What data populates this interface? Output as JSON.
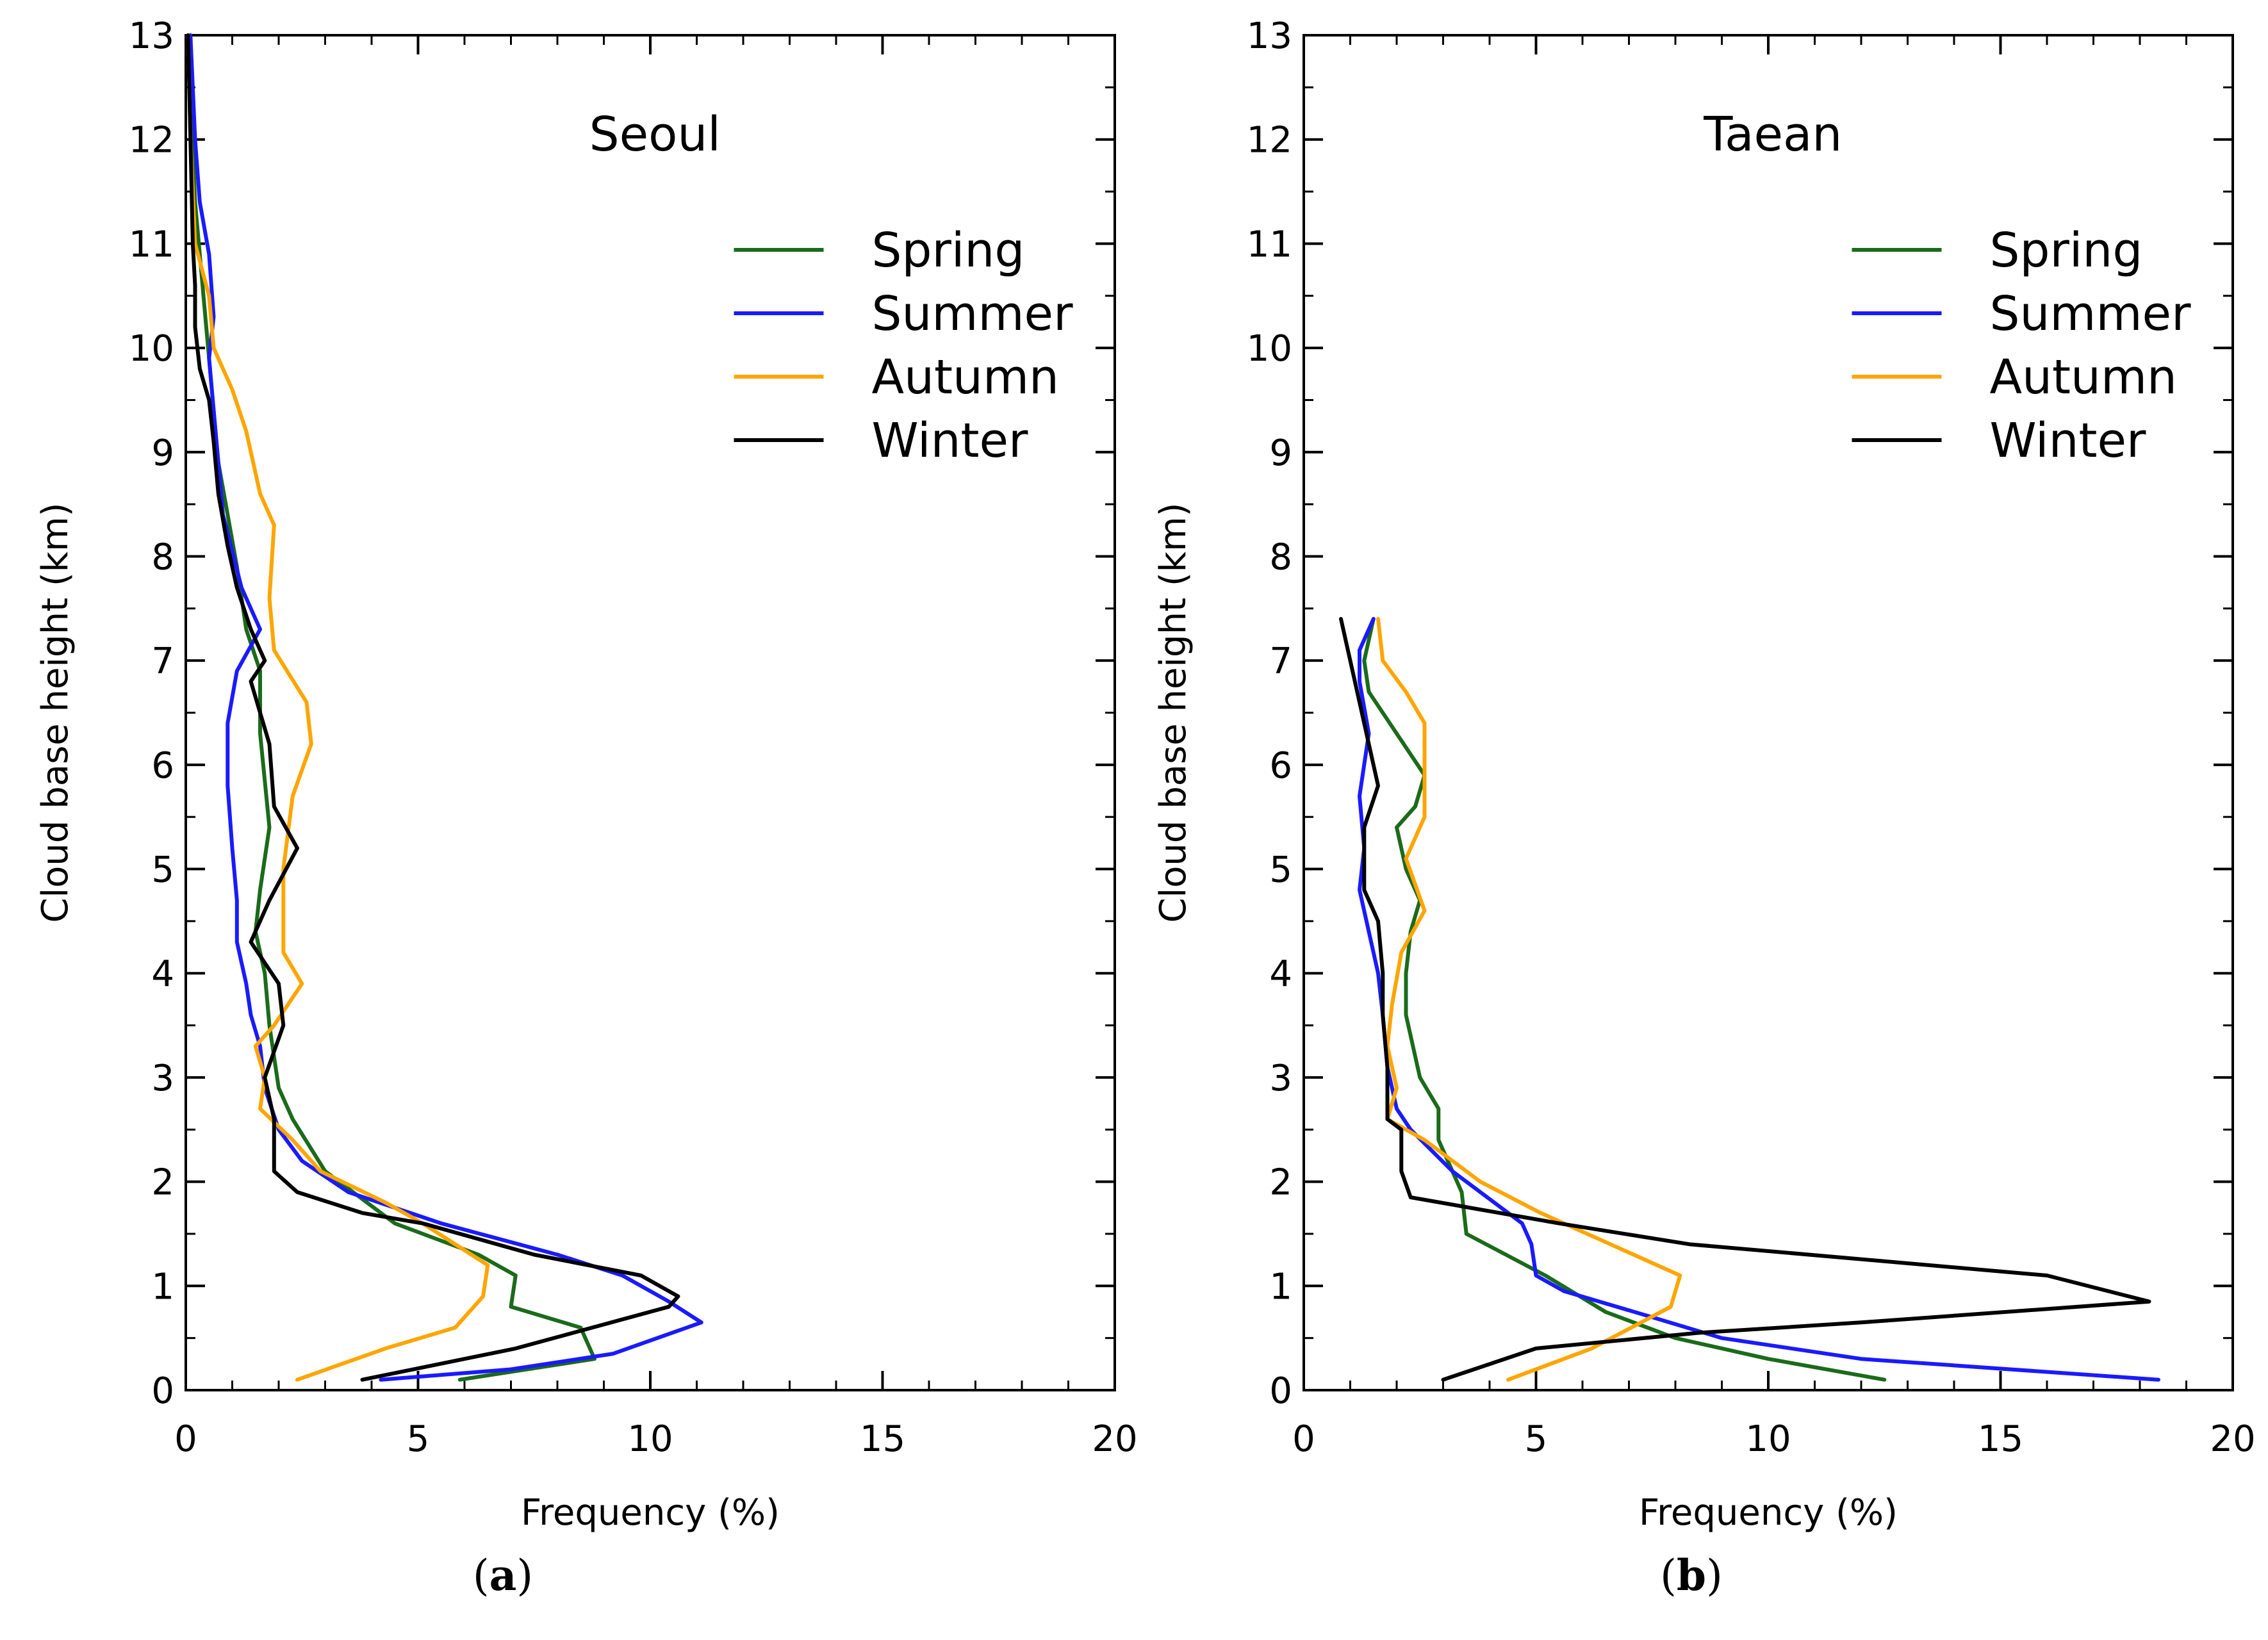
{
  "chart_data": [
    {
      "type": "line",
      "panel": "(a)",
      "panel_letter": "a",
      "title": "Seoul",
      "xlabel": "Frequency (%)",
      "ylabel": "Cloud base height (km)",
      "xlim": [
        0,
        20
      ],
      "ylim": [
        0,
        13
      ],
      "xticks": [
        0,
        5,
        10,
        15,
        20
      ],
      "yticks": [
        0,
        1,
        2,
        3,
        4,
        5,
        6,
        7,
        8,
        9,
        10,
        11,
        12,
        13
      ],
      "legend_position": "top-right",
      "series": [
        {
          "name": "Spring",
          "color": "#1a6b1a",
          "points": [
            [
              5.9,
              0.1
            ],
            [
              8.8,
              0.3
            ],
            [
              8.5,
              0.6
            ],
            [
              7.0,
              0.8
            ],
            [
              7.1,
              1.1
            ],
            [
              6.3,
              1.3
            ],
            [
              4.5,
              1.6
            ],
            [
              3.0,
              2.1
            ],
            [
              2.3,
              2.6
            ],
            [
              2.0,
              2.9
            ],
            [
              1.8,
              3.5
            ],
            [
              1.7,
              4.0
            ],
            [
              1.5,
              4.4
            ],
            [
              1.6,
              4.8
            ],
            [
              1.8,
              5.4
            ],
            [
              1.6,
              6.3
            ],
            [
              1.6,
              6.9
            ],
            [
              1.3,
              7.3
            ],
            [
              1.1,
              7.9
            ],
            [
              0.9,
              8.4
            ],
            [
              0.7,
              8.9
            ],
            [
              0.6,
              9.4
            ],
            [
              0.5,
              9.9
            ],
            [
              0.4,
              10.4
            ],
            [
              0.3,
              10.9
            ],
            [
              0.2,
              11.4
            ],
            [
              0.1,
              12.5
            ],
            [
              0.05,
              13.0
            ]
          ]
        },
        {
          "name": "Summer",
          "color": "#1a1aff",
          "points": [
            [
              4.2,
              0.1
            ],
            [
              7.0,
              0.2
            ],
            [
              9.2,
              0.35
            ],
            [
              11.1,
              0.65
            ],
            [
              10.4,
              0.85
            ],
            [
              9.4,
              1.1
            ],
            [
              8.0,
              1.3
            ],
            [
              5.5,
              1.6
            ],
            [
              3.5,
              1.9
            ],
            [
              2.5,
              2.2
            ],
            [
              2.0,
              2.5
            ],
            [
              1.7,
              2.9
            ],
            [
              1.6,
              3.3
            ],
            [
              1.4,
              3.6
            ],
            [
              1.3,
              3.9
            ],
            [
              1.1,
              4.3
            ],
            [
              1.1,
              4.7
            ],
            [
              1.0,
              5.2
            ],
            [
              0.9,
              5.8
            ],
            [
              0.9,
              6.4
            ],
            [
              1.1,
              6.9
            ],
            [
              1.6,
              7.3
            ],
            [
              1.2,
              7.7
            ],
            [
              0.8,
              8.4
            ],
            [
              0.7,
              8.9
            ],
            [
              0.6,
              9.4
            ],
            [
              0.5,
              9.9
            ],
            [
              0.6,
              10.3
            ],
            [
              0.5,
              10.9
            ],
            [
              0.3,
              11.4
            ],
            [
              0.2,
              12.0
            ],
            [
              0.1,
              13.0
            ]
          ]
        },
        {
          "name": "Autumn",
          "color": "#ffa500",
          "points": [
            [
              2.4,
              0.1
            ],
            [
              4.3,
              0.4
            ],
            [
              5.8,
              0.6
            ],
            [
              6.4,
              0.9
            ],
            [
              6.5,
              1.2
            ],
            [
              5.1,
              1.6
            ],
            [
              4.3,
              1.8
            ],
            [
              2.9,
              2.1
            ],
            [
              2.3,
              2.4
            ],
            [
              1.6,
              2.7
            ],
            [
              1.7,
              3.0
            ],
            [
              1.5,
              3.3
            ],
            [
              1.9,
              3.5
            ],
            [
              2.5,
              3.9
            ],
            [
              2.1,
              4.2
            ],
            [
              2.1,
              5.0
            ],
            [
              2.3,
              5.7
            ],
            [
              2.7,
              6.2
            ],
            [
              2.6,
              6.6
            ],
            [
              1.9,
              7.1
            ],
            [
              1.8,
              7.6
            ],
            [
              1.9,
              8.3
            ],
            [
              1.6,
              8.6
            ],
            [
              1.3,
              9.2
            ],
            [
              1.0,
              9.6
            ],
            [
              0.6,
              10.0
            ],
            [
              0.5,
              10.5
            ],
            [
              0.2,
              11.0
            ],
            [
              0.1,
              12.0
            ],
            [
              0.05,
              13.0
            ]
          ]
        },
        {
          "name": "Winter",
          "color": "#000000",
          "points": [
            [
              3.8,
              0.1
            ],
            [
              7.1,
              0.4
            ],
            [
              10.4,
              0.8
            ],
            [
              10.6,
              0.9
            ],
            [
              9.8,
              1.1
            ],
            [
              7.5,
              1.3
            ],
            [
              5.1,
              1.6
            ],
            [
              3.8,
              1.7
            ],
            [
              2.4,
              1.9
            ],
            [
              1.9,
              2.1
            ],
            [
              1.9,
              2.6
            ],
            [
              1.7,
              3.0
            ],
            [
              2.1,
              3.5
            ],
            [
              2.0,
              3.9
            ],
            [
              1.4,
              4.3
            ],
            [
              1.8,
              4.7
            ],
            [
              2.4,
              5.2
            ],
            [
              1.9,
              5.6
            ],
            [
              1.8,
              6.2
            ],
            [
              1.4,
              6.8
            ],
            [
              1.7,
              7.0
            ],
            [
              1.4,
              7.3
            ],
            [
              1.1,
              7.7
            ],
            [
              0.9,
              8.1
            ],
            [
              0.7,
              8.6
            ],
            [
              0.6,
              9.1
            ],
            [
              0.5,
              9.5
            ],
            [
              0.3,
              9.8
            ],
            [
              0.2,
              10.2
            ],
            [
              0.2,
              10.6
            ],
            [
              0.15,
              11.0
            ],
            [
              0.1,
              12.0
            ],
            [
              0.05,
              13.0
            ]
          ]
        }
      ]
    },
    {
      "type": "line",
      "panel": "(b)",
      "panel_letter": "b",
      "title": "Taean",
      "xlabel": "Frequency (%)",
      "ylabel": "Cloud base height (km)",
      "xlim": [
        0,
        20
      ],
      "ylim": [
        0,
        13
      ],
      "xticks": [
        0,
        5,
        10,
        15,
        20
      ],
      "yticks": [
        0,
        1,
        2,
        3,
        4,
        5,
        6,
        7,
        8,
        9,
        10,
        11,
        12,
        13
      ],
      "legend_position": "top-right",
      "series": [
        {
          "name": "Spring",
          "color": "#1a6b1a",
          "points": [
            [
              12.5,
              0.1
            ],
            [
              10.0,
              0.3
            ],
            [
              8.0,
              0.5
            ],
            [
              6.5,
              0.75
            ],
            [
              5.2,
              1.1
            ],
            [
              3.5,
              1.5
            ],
            [
              3.4,
              1.9
            ],
            [
              2.9,
              2.4
            ],
            [
              2.9,
              2.7
            ],
            [
              2.5,
              3.0
            ],
            [
              2.2,
              3.6
            ],
            [
              2.2,
              4.0
            ],
            [
              2.3,
              4.4
            ],
            [
              2.5,
              4.7
            ],
            [
              2.2,
              5.0
            ],
            [
              2.0,
              5.4
            ],
            [
              2.4,
              5.6
            ],
            [
              2.6,
              5.9
            ],
            [
              1.4,
              6.7
            ],
            [
              1.3,
              7.0
            ],
            [
              1.5,
              7.4
            ]
          ]
        },
        {
          "name": "Summer",
          "color": "#1a1aff",
          "points": [
            [
              18.4,
              0.1
            ],
            [
              12.0,
              0.3
            ],
            [
              9.0,
              0.5
            ],
            [
              7.5,
              0.7
            ],
            [
              5.6,
              0.95
            ],
            [
              5.0,
              1.1
            ],
            [
              4.9,
              1.4
            ],
            [
              4.7,
              1.6
            ],
            [
              3.2,
              2.1
            ],
            [
              2.3,
              2.5
            ],
            [
              2.0,
              2.7
            ],
            [
              1.8,
              3.1
            ],
            [
              1.7,
              3.6
            ],
            [
              1.6,
              4.0
            ],
            [
              1.4,
              4.4
            ],
            [
              1.2,
              4.8
            ],
            [
              1.3,
              5.2
            ],
            [
              1.2,
              5.7
            ],
            [
              1.4,
              6.3
            ],
            [
              1.2,
              6.8
            ],
            [
              1.2,
              7.1
            ],
            [
              1.5,
              7.4
            ]
          ]
        },
        {
          "name": "Autumn",
          "color": "#ffa500",
          "points": [
            [
              4.4,
              0.1
            ],
            [
              6.2,
              0.4
            ],
            [
              7.9,
              0.8
            ],
            [
              8.1,
              1.1
            ],
            [
              6.6,
              1.4
            ],
            [
              5.1,
              1.7
            ],
            [
              3.8,
              2.0
            ],
            [
              2.6,
              2.4
            ],
            [
              1.8,
              2.6
            ],
            [
              2.0,
              2.9
            ],
            [
              1.8,
              3.3
            ],
            [
              1.9,
              3.7
            ],
            [
              2.1,
              4.2
            ],
            [
              2.6,
              4.6
            ],
            [
              2.2,
              5.1
            ],
            [
              2.6,
              5.5
            ],
            [
              2.6,
              6.0
            ],
            [
              2.6,
              6.4
            ],
            [
              2.2,
              6.7
            ],
            [
              1.7,
              7.0
            ],
            [
              1.6,
              7.4
            ]
          ]
        },
        {
          "name": "Winter",
          "color": "#000000",
          "points": [
            [
              3.0,
              0.1
            ],
            [
              5.0,
              0.4
            ],
            [
              8.5,
              0.55
            ],
            [
              12.0,
              0.65
            ],
            [
              18.2,
              0.85
            ],
            [
              16.0,
              1.1
            ],
            [
              8.3,
              1.4
            ],
            [
              5.5,
              1.6
            ],
            [
              2.3,
              1.85
            ],
            [
              2.1,
              2.1
            ],
            [
              2.1,
              2.5
            ],
            [
              1.8,
              2.6
            ],
            [
              1.8,
              3.1
            ],
            [
              1.7,
              3.6
            ],
            [
              1.7,
              4.0
            ],
            [
              1.6,
              4.5
            ],
            [
              1.3,
              4.8
            ],
            [
              1.3,
              5.4
            ],
            [
              1.6,
              5.8
            ],
            [
              1.4,
              6.2
            ],
            [
              1.2,
              6.6
            ],
            [
              1.0,
              7.0
            ],
            [
              0.8,
              7.4
            ]
          ]
        }
      ]
    }
  ]
}
